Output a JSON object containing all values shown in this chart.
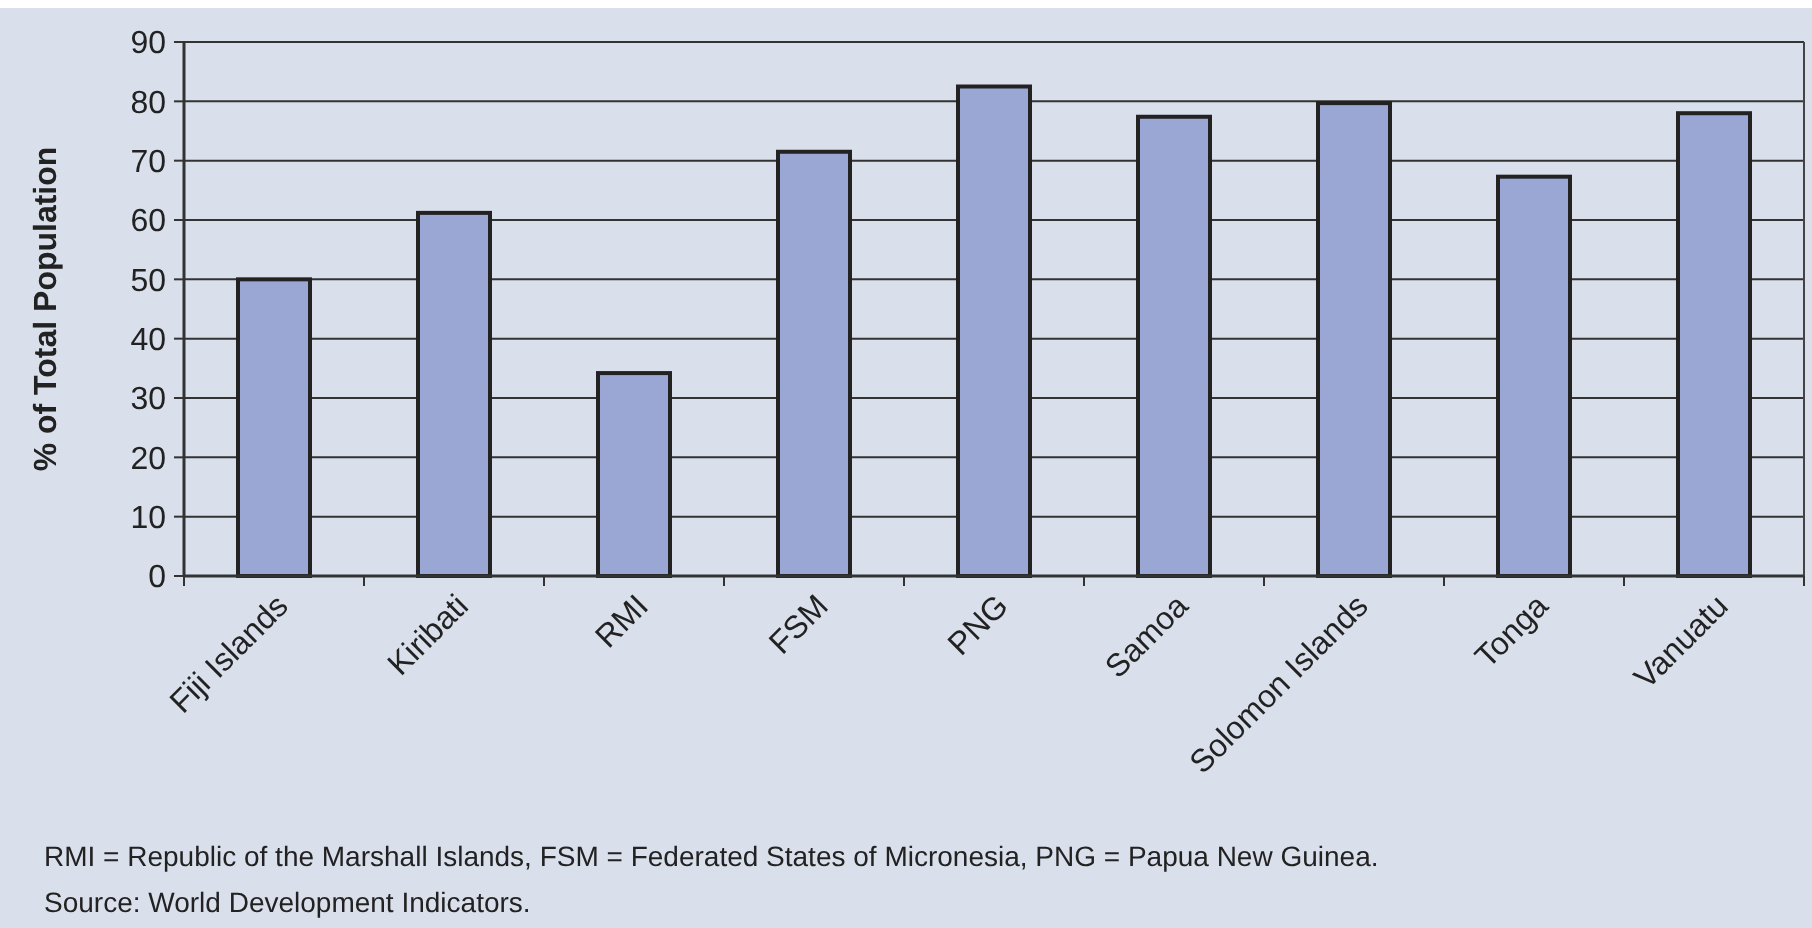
{
  "chart_data": {
    "type": "bar",
    "ylabel": "% of Total Population",
    "categories": [
      "Fiji Islands",
      "Kiribati",
      "RMI",
      "FSM",
      "PNG",
      "Samoa",
      "Solomon Islands",
      "Tonga",
      "Vanuatu"
    ],
    "values": [
      50,
      61.2,
      34.2,
      71.5,
      82.5,
      77.4,
      79.7,
      67.3,
      78
    ],
    "color": "#9aa6d3",
    "ylim": [
      0,
      90
    ],
    "yticks": [
      0,
      10,
      20,
      30,
      40,
      50,
      60,
      70,
      80,
      90
    ],
    "grid": "y",
    "annotations": [
      "RMI = Republic of the Marshall Islands, FSM = Federated States of Micronesia, PNG = Papua New Guinea.",
      "Source: World Development Indicators."
    ]
  }
}
